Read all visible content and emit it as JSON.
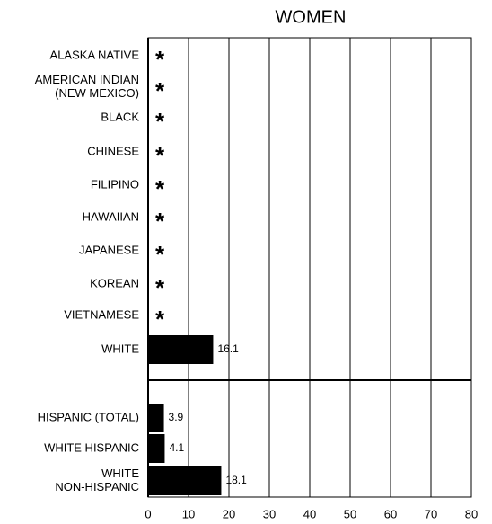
{
  "chart_data": {
    "type": "bar",
    "orientation": "horizontal",
    "title": "WOMEN",
    "categories": [
      [
        "ALASKA NATIVE"
      ],
      [
        "AMERICAN INDIAN",
        "(NEW MEXICO)"
      ],
      [
        "BLACK"
      ],
      [
        "CHINESE"
      ],
      [
        "FILIPINO"
      ],
      [
        "HAWAIIAN"
      ],
      [
        "JAPANESE"
      ],
      [
        "KOREAN"
      ],
      [
        "VIETNAMESE"
      ],
      [
        "WHITE"
      ],
      [
        "HISPANIC (TOTAL)"
      ],
      [
        "WHITE HISPANIC"
      ],
      [
        "WHITE",
        "NON-HISPANIC"
      ]
    ],
    "values": [
      null,
      null,
      null,
      null,
      null,
      null,
      null,
      null,
      null,
      16.1,
      3.9,
      4.1,
      18.1
    ],
    "value_labels": [
      "*",
      "*",
      "*",
      "*",
      "*",
      "*",
      "*",
      "*",
      "*",
      "16.1",
      "3.9",
      "4.1",
      "18.1"
    ],
    "color": "#000000",
    "xlim": [
      0,
      80
    ],
    "xticks": [
      0,
      10,
      20,
      30,
      40,
      50,
      60,
      70,
      80
    ],
    "grid": true
  }
}
